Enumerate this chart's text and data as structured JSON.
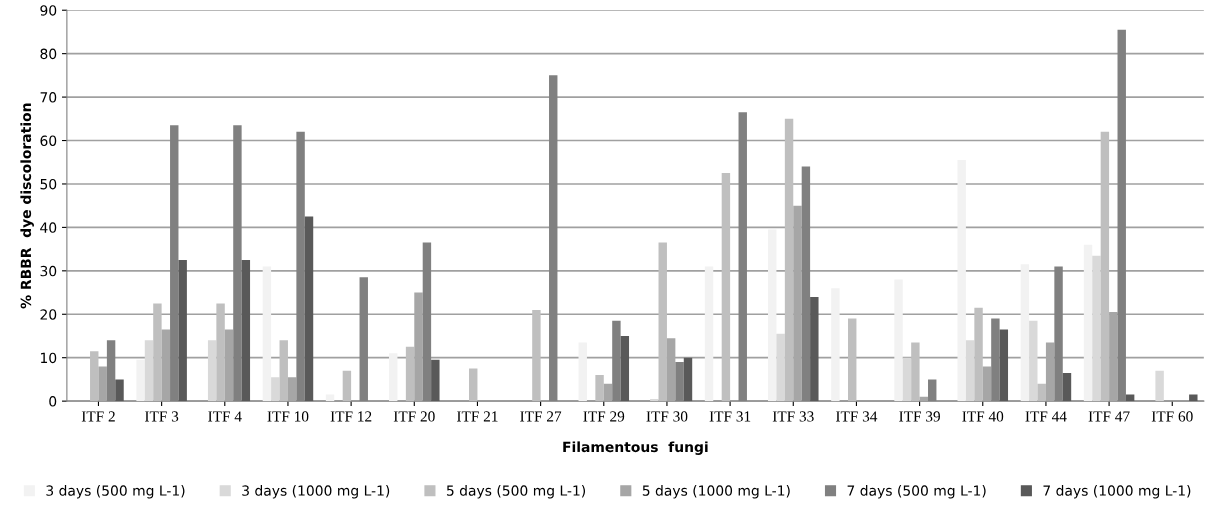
{
  "chart_data": {
    "type": "bar",
    "xlabel": "Filamentous  fungi",
    "ylabel": "% RBBR  dye discoloration",
    "categories": [
      "ITF 2",
      "ITF 3",
      "ITF 4",
      "ITF 10",
      "ITF 12",
      "ITF 20",
      "ITF 21",
      "ITF 27",
      "ITF 29",
      "ITF 30",
      "ITF 31",
      "ITF 33",
      "ITF 34",
      "ITF 39",
      "ITF 40",
      "ITF 44",
      "ITF 47",
      "ITF 60"
    ],
    "series": [
      {
        "name": "3 days (500 mg L-1)",
        "color": "#f2f2f2",
        "values": [
          null,
          9.5,
          null,
          31,
          1.5,
          11,
          null,
          null,
          13.5,
          null,
          31,
          39.5,
          26,
          28,
          55.5,
          31.5,
          36,
          null
        ]
      },
      {
        "name": "3 days (1000 mg L-1)",
        "color": "#d9d9d9",
        "values": [
          null,
          14,
          14,
          5.5,
          null,
          null,
          null,
          null,
          null,
          0.5,
          null,
          15.5,
          null,
          10,
          14,
          18.5,
          33.5,
          7
        ]
      },
      {
        "name": "5 days (500 mg L-1)",
        "color": "#bfbfbf",
        "values": [
          11.5,
          22.5,
          22.5,
          14,
          7,
          12.5,
          7.5,
          21,
          6,
          36.5,
          52.5,
          65,
          19,
          13.5,
          21.5,
          4,
          62,
          null
        ]
      },
      {
        "name": "5 days (1000 mg L-1)",
        "color": "#a6a6a6",
        "values": [
          8,
          16.5,
          16.5,
          5.5,
          null,
          25,
          null,
          null,
          4,
          14.5,
          null,
          45,
          null,
          1,
          8,
          13.5,
          20.5,
          null
        ]
      },
      {
        "name": "7 days (500 mg L-1)",
        "color": "#808080",
        "values": [
          14,
          63.5,
          63.5,
          62,
          28.5,
          36.5,
          null,
          75,
          18.5,
          9,
          66.5,
          54,
          null,
          5,
          19,
          31,
          85.5,
          null
        ]
      },
      {
        "name": "7 days (1000 mg L-1)",
        "color": "#595959",
        "values": [
          5,
          32.5,
          32.5,
          42.5,
          null,
          9.5,
          null,
          null,
          15,
          10,
          null,
          24,
          null,
          null,
          16.5,
          6.5,
          1.5,
          1.5
        ]
      }
    ],
    "ylim": [
      0,
      90
    ],
    "yticks": [
      0,
      10,
      20,
      30,
      40,
      50,
      60,
      70,
      80,
      90
    ],
    "grid": "y",
    "legend": "bottom"
  }
}
